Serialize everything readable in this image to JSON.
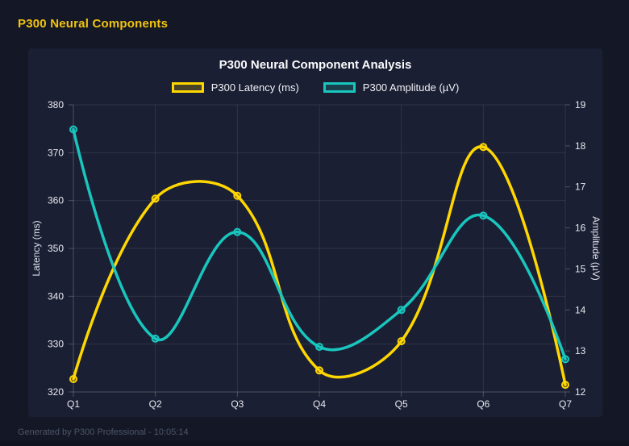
{
  "header": {
    "title": "P300 Neural Components"
  },
  "footer": {
    "text": "Generated by P300 Professional - 10:05:14"
  },
  "colors": {
    "page_background": "#141826",
    "panel_background": "#1b1f33",
    "header_accent": "#F2C40F",
    "latency_series": "#FFD700",
    "amplitude_series": "#19C6BE",
    "grid": "rgba(255,255,255,0.09)",
    "axis_border": "rgba(255,255,255,0.22)",
    "tick_text": "#E8EAF0",
    "axis_title_text": "#DDE0E8"
  },
  "chart_data": {
    "type": "line",
    "title": "P300 Neural Component Analysis",
    "categories": [
      "Q1",
      "Q2",
      "Q3",
      "Q4",
      "Q5",
      "Q6",
      "Q7"
    ],
    "series": [
      {
        "name": "P300 Latency (ms)",
        "axis": "left",
        "color": "#FFD700",
        "values": [
          322.7,
          360.4,
          361.0,
          324.5,
          330.6,
          371.2,
          321.5
        ]
      },
      {
        "name": "P300 Amplitude (µV)",
        "axis": "right",
        "color": "#19C6BE",
        "values": [
          18.4,
          13.3,
          15.9,
          13.1,
          14.0,
          16.3,
          12.8
        ]
      }
    ],
    "left_axis": {
      "label": "Latency (ms)",
      "min": 320,
      "max": 380,
      "ticks": [
        380,
        370,
        360,
        350,
        340,
        330,
        320
      ]
    },
    "right_axis": {
      "label": "Amplitude (µV)",
      "min": 12,
      "max": 19,
      "ticks": [
        19,
        18,
        17,
        16,
        15,
        14,
        13,
        12
      ]
    },
    "grid": true,
    "legend_position": "top",
    "line_tension": 0.4
  }
}
